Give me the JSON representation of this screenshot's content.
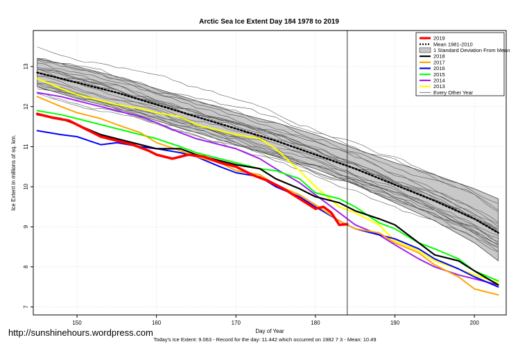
{
  "watermark": "http://sunshinehours.wordpress.com",
  "chart_data": {
    "type": "line",
    "title": "Arctic Sea Ice Extent Day 184 1978 to 2019",
    "xlabel": "Day of Year",
    "ylabel": "Ice Extent in millions of sq. km.",
    "xlim": [
      144.5,
      204
    ],
    "ylim": [
      6.8,
      13.9
    ],
    "xticks": [
      150,
      160,
      170,
      180,
      190,
      200
    ],
    "yticks": [
      7,
      8,
      9,
      10,
      11,
      12,
      13
    ],
    "grid": true,
    "current_day": 184,
    "legend_position": "top-right",
    "footer": "Today's Ice Extent: 9.063  - Record for the day: 11.442 which occurred on 1982 7 3  - Mean: 10.49",
    "legend": [
      {
        "label": "2019",
        "color": "#ff0000",
        "style": "solid"
      },
      {
        "label": "Mean 1981-2010",
        "color": "#000000",
        "style": "dotted"
      },
      {
        "label": "1 Standard Deviation From Mean",
        "color": "#c8c8c8",
        "style": "band"
      },
      {
        "label": "2018",
        "color": "#000000",
        "style": "solid"
      },
      {
        "label": "2017",
        "color": "#ffa500",
        "style": "solid"
      },
      {
        "label": "2016",
        "color": "#0000ff",
        "style": "solid"
      },
      {
        "label": "2015",
        "color": "#00ff00",
        "style": "solid"
      },
      {
        "label": "2014",
        "color": "#a020f0",
        "style": "solid"
      },
      {
        "label": "2013",
        "color": "#ffff00",
        "style": "solid"
      },
      {
        "label": "Every Other Year",
        "color": "#555555",
        "style": "thin"
      }
    ],
    "band": {
      "x": [
        145,
        150,
        155,
        160,
        165,
        170,
        175,
        180,
        185,
        190,
        195,
        200,
        203
      ],
      "upper": [
        13.2,
        13.0,
        12.75,
        12.45,
        12.15,
        11.85,
        11.6,
        11.3,
        10.95,
        10.6,
        10.3,
        9.95,
        9.7
      ],
      "lower": [
        12.5,
        12.2,
        11.95,
        11.65,
        11.35,
        11.05,
        10.75,
        10.45,
        10.05,
        9.6,
        9.15,
        8.6,
        8.15
      ]
    },
    "series": [
      {
        "name": "Mean 1981-2010",
        "color": "#000000",
        "width": 2.6,
        "dash": "2,3",
        "x": [
          145,
          150,
          155,
          160,
          165,
          170,
          175,
          180,
          185,
          190,
          195,
          200,
          203
        ],
        "y": [
          12.85,
          12.6,
          12.35,
          12.05,
          11.75,
          11.45,
          11.15,
          10.8,
          10.45,
          10.05,
          9.65,
          9.2,
          8.85
        ]
      },
      {
        "name": "2013",
        "color": "#ffff00",
        "width": 2.2,
        "x": [
          145,
          148,
          150,
          153,
          155,
          158,
          160,
          163,
          165,
          168,
          170,
          173,
          175,
          178,
          180,
          183,
          185,
          188,
          190,
          193,
          195,
          198,
          200,
          203
        ],
        "y": [
          12.7,
          12.45,
          12.3,
          12.15,
          12.05,
          11.95,
          11.85,
          11.75,
          11.55,
          11.4,
          11.3,
          11.2,
          10.95,
          10.4,
          10.0,
          9.5,
          9.35,
          9.05,
          8.65,
          8.4,
          8.15,
          7.95,
          7.8,
          7.6
        ]
      },
      {
        "name": "2014",
        "color": "#a020f0",
        "width": 2.0,
        "x": [
          145,
          148,
          150,
          153,
          155,
          158,
          160,
          163,
          165,
          168,
          170,
          173,
          175,
          178,
          180,
          183,
          185,
          188,
          190,
          193,
          195,
          198,
          200,
          203
        ],
        "y": [
          12.35,
          12.25,
          12.15,
          12.0,
          11.9,
          11.75,
          11.6,
          11.35,
          11.2,
          11.05,
          10.95,
          10.7,
          10.45,
          10.1,
          9.8,
          9.35,
          9.05,
          8.8,
          8.55,
          8.2,
          8.0,
          7.8,
          7.7,
          7.55
        ]
      },
      {
        "name": "2015",
        "color": "#00ff00",
        "width": 2.0,
        "x": [
          145,
          148,
          150,
          153,
          155,
          158,
          160,
          163,
          165,
          168,
          170,
          173,
          175,
          178,
          180,
          183,
          185,
          188,
          190,
          193,
          195,
          198,
          200,
          203
        ],
        "y": [
          11.9,
          11.8,
          11.7,
          11.55,
          11.45,
          11.3,
          11.2,
          11.0,
          10.85,
          10.7,
          10.6,
          10.45,
          10.4,
          10.2,
          9.85,
          9.7,
          9.5,
          9.1,
          8.95,
          8.6,
          8.45,
          8.2,
          7.9,
          7.65
        ]
      },
      {
        "name": "2016",
        "color": "#0000ff",
        "width": 2.0,
        "x": [
          145,
          148,
          150,
          153,
          155,
          158,
          160,
          163,
          165,
          168,
          170,
          173,
          175,
          178,
          180,
          183,
          185,
          188,
          190,
          193,
          195,
          198,
          200,
          203
        ],
        "y": [
          11.4,
          11.3,
          11.25,
          11.05,
          11.1,
          11.0,
          10.95,
          10.85,
          10.75,
          10.5,
          10.35,
          10.25,
          10.0,
          9.75,
          9.5,
          9.15,
          8.95,
          8.8,
          8.7,
          8.45,
          8.2,
          7.95,
          7.75,
          7.5
        ]
      },
      {
        "name": "2017",
        "color": "#ffa500",
        "width": 2.0,
        "x": [
          145,
          148,
          150,
          153,
          155,
          158,
          160,
          163,
          165,
          168,
          170,
          173,
          175,
          178,
          180,
          183,
          185,
          188,
          190,
          193,
          195,
          198,
          200,
          203
        ],
        "y": [
          12.25,
          12.0,
          11.85,
          11.7,
          11.55,
          11.35,
          11.1,
          10.9,
          10.75,
          10.6,
          10.4,
          10.3,
          10.05,
          9.8,
          9.55,
          9.15,
          8.95,
          8.85,
          8.6,
          8.35,
          8.05,
          7.75,
          7.45,
          7.3
        ]
      },
      {
        "name": "2018",
        "color": "#000000",
        "width": 2.2,
        "x": [
          145,
          148,
          150,
          153,
          155,
          158,
          160,
          163,
          165,
          168,
          170,
          173,
          175,
          178,
          180,
          183,
          185,
          188,
          190,
          193,
          195,
          198,
          200,
          203
        ],
        "y": [
          11.8,
          11.7,
          11.55,
          11.3,
          11.2,
          11.05,
          10.95,
          10.95,
          10.8,
          10.65,
          10.55,
          10.45,
          10.2,
          9.95,
          9.75,
          9.6,
          9.4,
          9.2,
          9.05,
          8.6,
          8.3,
          8.15,
          7.9,
          7.55
        ]
      },
      {
        "name": "2019",
        "color": "#ff0000",
        "width": 3.6,
        "x": [
          145,
          147,
          149,
          151,
          153,
          155,
          157,
          159,
          160,
          162,
          164,
          166,
          168,
          170,
          172,
          174,
          176,
          178,
          180,
          181,
          182,
          183,
          184
        ],
        "y": [
          11.82,
          11.72,
          11.65,
          11.45,
          11.25,
          11.15,
          11.05,
          10.9,
          10.8,
          10.7,
          10.8,
          10.75,
          10.6,
          10.5,
          10.3,
          10.15,
          9.95,
          9.7,
          9.45,
          9.5,
          9.35,
          9.05,
          9.063
        ]
      }
    ]
  }
}
